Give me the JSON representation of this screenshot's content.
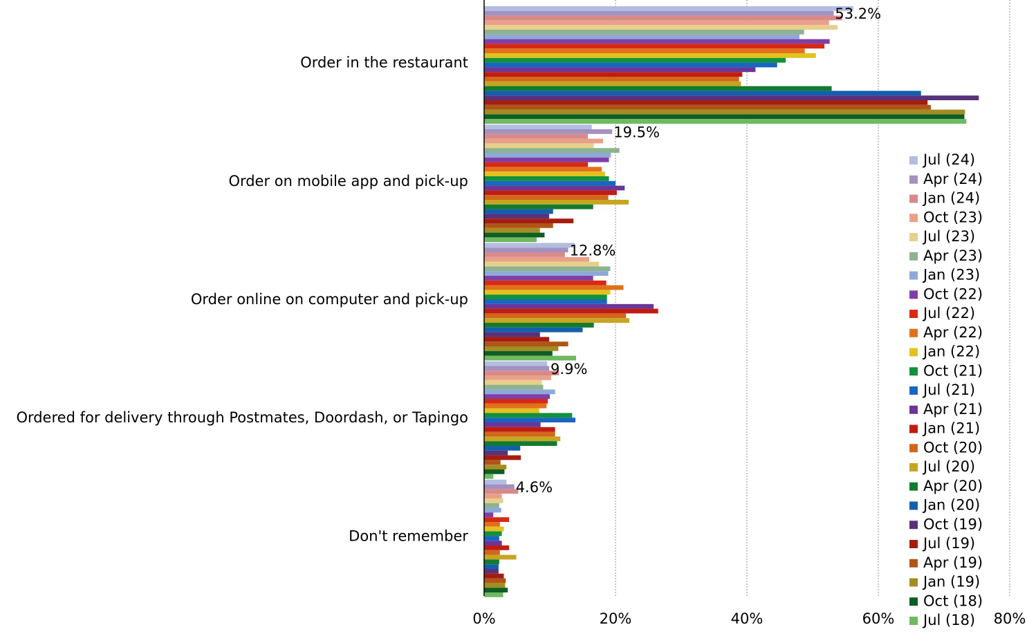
{
  "chart_data": {
    "type": "bar",
    "orientation": "horizontal",
    "categories": [
      "Order in the restaurant",
      "Order on mobile app and pick-up",
      "Order online on computer and pick-up",
      "Ordered for delivery through Postmates, Doordash, or Tapingo",
      "Don't remember"
    ],
    "xlim": [
      0,
      80
    ],
    "xticks": [
      "0%",
      "20%",
      "40%",
      "60%",
      "80%"
    ],
    "grid": "vertical-dotted",
    "legend_position": "right",
    "data_labels": [
      "53.2%",
      "19.5%",
      "12.8%",
      "9.9%",
      "4.6%"
    ],
    "series": [
      {
        "name": "Jul (24)",
        "color": "#b3bde0",
        "values": [
          56.2,
          16.4,
          13.8,
          9.6,
          3.4
        ]
      },
      {
        "name": "Apr (24)",
        "color": "#a391bf",
        "values": [
          53.2,
          19.5,
          12.8,
          9.9,
          4.6
        ]
      },
      {
        "name": "Jan (24)",
        "color": "#d88a8a",
        "values": [
          54.5,
          15.8,
          12.3,
          11.4,
          5.2
        ]
      },
      {
        "name": "Oct (23)",
        "color": "#e9a089",
        "values": [
          52.5,
          18.1,
          16.0,
          10.2,
          2.7
        ]
      },
      {
        "name": "Jul (23)",
        "color": "#e7cf8c",
        "values": [
          53.8,
          16.7,
          17.5,
          8.8,
          2.9
        ]
      },
      {
        "name": "Apr (23)",
        "color": "#8db38f",
        "values": [
          48.7,
          20.6,
          19.2,
          9.0,
          2.3
        ]
      },
      {
        "name": "Jan (23)",
        "color": "#8ea8d9",
        "values": [
          48.0,
          19.3,
          18.9,
          10.8,
          2.6
        ]
      },
      {
        "name": "Oct (22)",
        "color": "#7f3fa7",
        "values": [
          52.6,
          19.0,
          16.6,
          10.0,
          1.4
        ]
      },
      {
        "name": "Jul (22)",
        "color": "#d62a13",
        "values": [
          51.8,
          15.8,
          18.6,
          9.7,
          3.8
        ]
      },
      {
        "name": "Apr (22)",
        "color": "#e2701b",
        "values": [
          48.8,
          17.9,
          21.2,
          9.5,
          2.4
        ]
      },
      {
        "name": "Jan (22)",
        "color": "#e3c11e",
        "values": [
          50.5,
          18.4,
          19.2,
          8.4,
          3.0
        ]
      },
      {
        "name": "Oct (21)",
        "color": "#12913b",
        "values": [
          45.9,
          19.0,
          18.7,
          13.4,
          2.7
        ]
      },
      {
        "name": "Jul (21)",
        "color": "#1866c0",
        "values": [
          44.6,
          20.0,
          18.7,
          13.9,
          2.3
        ]
      },
      {
        "name": "Apr (21)",
        "color": "#6b3697",
        "values": [
          41.3,
          21.4,
          25.8,
          8.6,
          2.7
        ]
      },
      {
        "name": "Jan (21)",
        "color": "#c01d12",
        "values": [
          39.3,
          20.2,
          26.5,
          10.8,
          3.8
        ]
      },
      {
        "name": "Oct (20)",
        "color": "#d2661a",
        "values": [
          38.8,
          18.9,
          21.6,
          10.8,
          2.4
        ]
      },
      {
        "name": "Jul (20)",
        "color": "#c6a521",
        "values": [
          39.1,
          22.0,
          22.1,
          11.6,
          4.9
        ]
      },
      {
        "name": "Apr (20)",
        "color": "#127b30",
        "values": [
          52.9,
          16.6,
          16.7,
          11.1,
          2.3
        ]
      },
      {
        "name": "Jan (20)",
        "color": "#145eae",
        "values": [
          66.5,
          10.5,
          15.0,
          5.5,
          2.2
        ]
      },
      {
        "name": "Oct (19)",
        "color": "#583179",
        "values": [
          75.3,
          9.9,
          8.5,
          3.6,
          2.2
        ]
      },
      {
        "name": "Jul (19)",
        "color": "#a41d10",
        "values": [
          67.5,
          13.6,
          9.9,
          5.6,
          3.0
        ]
      },
      {
        "name": "Apr (19)",
        "color": "#b05518",
        "values": [
          68.0,
          10.5,
          12.8,
          2.5,
          3.3
        ]
      },
      {
        "name": "Jan (19)",
        "color": "#a38d22",
        "values": [
          73.2,
          8.5,
          11.3,
          3.4,
          3.2
        ]
      },
      {
        "name": "Oct (18)",
        "color": "#0e5e24",
        "values": [
          73.1,
          9.2,
          10.4,
          3.1,
          3.6
        ]
      },
      {
        "name": "Jul (18)",
        "color": "#6fb961",
        "values": [
          73.4,
          8.0,
          14.0,
          1.4,
          2.9
        ]
      }
    ]
  }
}
